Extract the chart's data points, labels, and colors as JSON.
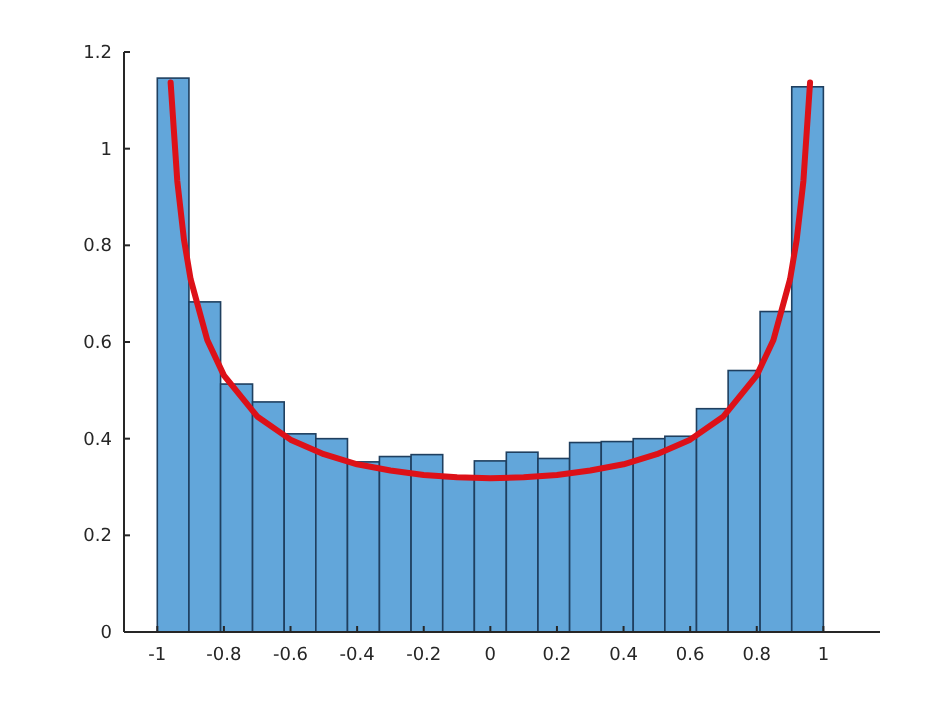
{
  "chart_data": {
    "type": "histogram",
    "bins": [
      -1,
      -0.905,
      -0.81,
      -0.714,
      -0.619,
      -0.524,
      -0.429,
      -0.333,
      -0.238,
      -0.143,
      -0.048,
      0.048,
      0.143,
      0.238,
      0.333,
      0.429,
      0.524,
      0.619,
      0.714,
      0.81,
      0.905,
      1
    ],
    "values": [
      1.146,
      0.683,
      0.513,
      0.476,
      0.41,
      0.4,
      0.352,
      0.363,
      0.367,
      0.318,
      0.354,
      0.372,
      0.359,
      0.392,
      0.394,
      0.4,
      0.405,
      0.462,
      0.541,
      0.663,
      1.128
    ],
    "color": "#62a6da",
    "series": [
      {
        "type": "line",
        "color": "#dd1118",
        "x": [
          -0.96,
          -0.94,
          -0.92,
          -0.9,
          -0.85,
          -0.8,
          -0.7,
          -0.6,
          -0.5,
          -0.4,
          -0.3,
          -0.2,
          -0.1,
          0,
          0.1,
          0.2,
          0.3,
          0.4,
          0.5,
          0.6,
          0.7,
          0.8,
          0.85,
          0.9,
          0.92,
          0.94,
          0.96
        ],
        "values": [
          1.137,
          0.933,
          0.812,
          0.73,
          0.604,
          0.531,
          0.446,
          0.398,
          0.368,
          0.347,
          0.334,
          0.325,
          0.32,
          0.318,
          0.32,
          0.325,
          0.334,
          0.347,
          0.368,
          0.398,
          0.446,
          0.531,
          0.604,
          0.73,
          0.812,
          0.933,
          1.137
        ]
      }
    ],
    "xlim": [
      -1.1,
      1.17
    ],
    "ylim": [
      0,
      1.2
    ],
    "xticks": [
      -1,
      -0.8,
      -0.6,
      -0.4,
      -0.2,
      0,
      0.2,
      0.4,
      0.6,
      0.8,
      1
    ],
    "yticks": [
      0,
      0.2,
      0.4,
      0.6,
      0.8,
      1,
      1.2
    ],
    "grid": false,
    "marker": "none",
    "line_style": "solid"
  }
}
